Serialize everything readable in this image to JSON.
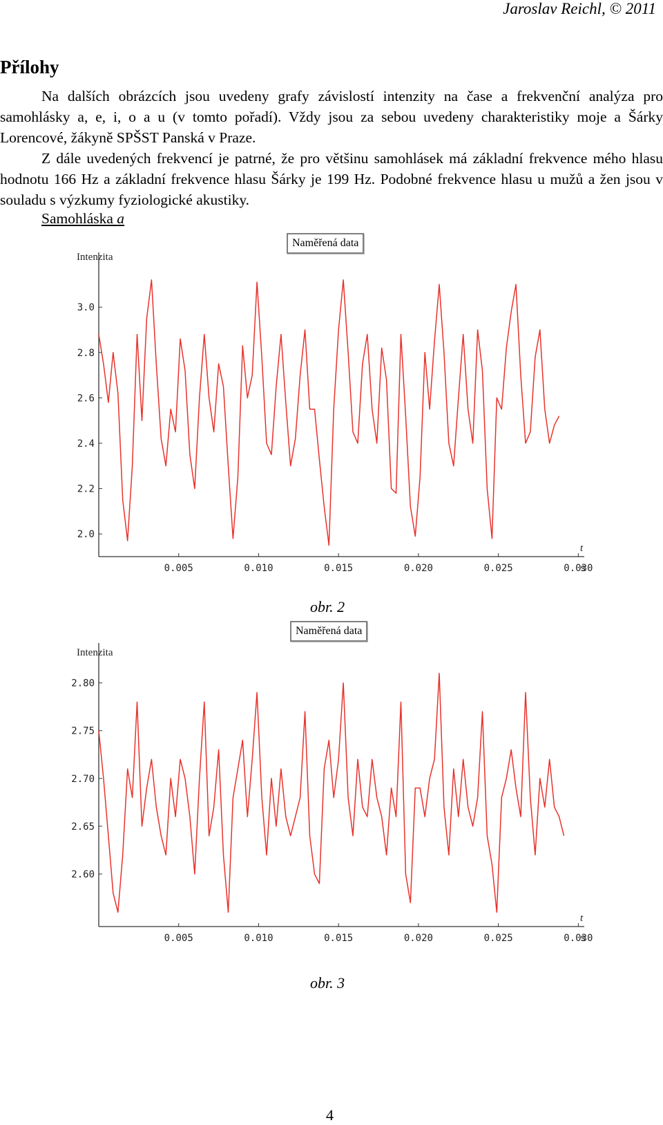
{
  "header": {
    "text": "Jaroslav Reichl, © 2011"
  },
  "heading": "Přílohy",
  "paragraphs": [
    "Na dalších obrázcích jsou uvedeny grafy závislostí intenzity na čase a frekvenční analýza pro samohlásky a, e, i, o a u (v tomto pořadí). Vždy jsou za sebou uvedeny charakteristiky moje a Šárky Lorencové, žákyně SPŠST Panská v Praze.",
    "Z dále uvedených frekvencí je patrné, že pro většinu samohlásek má základní frekvence mého hlasu hodnotu 166 Hz a základní frekvence hlasu Šárky je 199 Hz. Podobné frekvence hlasu u mužů a žen jsou v souladu s výzkumy fyziologické akustiky."
  ],
  "subheading": {
    "text": "Samohláska ",
    "vowel": "a"
  },
  "page_number": "4",
  "line_color": "#e8322b",
  "chart_data": [
    {
      "type": "line",
      "legend": "Naměřená data",
      "ylabel": "Intenzita",
      "xlabel": "t",
      "xunit": "s",
      "xlim": [
        0,
        0.0302
      ],
      "ylim": [
        1.9,
        3.15
      ],
      "xticks": [
        0.005,
        0.01,
        0.015,
        0.02,
        0.025,
        0.03
      ],
      "xtick_labels": [
        "0.005",
        "0.010",
        "0.015",
        "0.020",
        "0.025",
        "0.030"
      ],
      "yticks": [
        2.0,
        2.2,
        2.4,
        2.6,
        2.8,
        3.0
      ],
      "ytick_labels": [
        "2.0",
        "2.2",
        "2.4",
        "2.6",
        "2.8",
        "3.0"
      ],
      "caption": "obr. 2",
      "series": [
        {
          "x": [
            0.0,
            0.0003,
            0.0006,
            0.0009,
            0.0012,
            0.0015,
            0.0018,
            0.0021,
            0.0024,
            0.0027,
            0.003,
            0.0033,
            0.0036,
            0.0039,
            0.0042,
            0.0045,
            0.0048,
            0.0051,
            0.0054,
            0.0057,
            0.006,
            0.0063,
            0.0066,
            0.0069,
            0.0072,
            0.0075,
            0.0078,
            0.0081,
            0.0084,
            0.0087,
            0.009,
            0.0093,
            0.0096,
            0.0099,
            0.0102,
            0.0105,
            0.0108,
            0.0111,
            0.0114,
            0.0117,
            0.012,
            0.0123,
            0.0126,
            0.0129,
            0.0132,
            0.0135,
            0.0138,
            0.0141,
            0.0144,
            0.0147,
            0.015,
            0.0153,
            0.0156,
            0.0159,
            0.0162,
            0.0165,
            0.0168,
            0.0171,
            0.0174,
            0.0177,
            0.018,
            0.0183,
            0.0186,
            0.0189,
            0.0192,
            0.0195,
            0.0198,
            0.0201,
            0.0204,
            0.0207,
            0.021,
            0.0213,
            0.0216,
            0.0219,
            0.0222,
            0.0225,
            0.0228,
            0.0231,
            0.0234,
            0.0237,
            0.024,
            0.0243,
            0.0246,
            0.0249,
            0.0252,
            0.0255,
            0.0258,
            0.0261,
            0.0264,
            0.0267,
            0.027,
            0.0273,
            0.0276,
            0.0279,
            0.0282,
            0.0285,
            0.0288
          ],
          "y": [
            2.88,
            2.75,
            2.58,
            2.8,
            2.62,
            2.15,
            1.97,
            2.3,
            2.88,
            2.5,
            2.95,
            3.12,
            2.75,
            2.42,
            2.3,
            2.55,
            2.45,
            2.86,
            2.72,
            2.35,
            2.2,
            2.6,
            2.88,
            2.6,
            2.45,
            2.75,
            2.65,
            2.3,
            1.98,
            2.25,
            2.83,
            2.6,
            2.7,
            3.11,
            2.78,
            2.4,
            2.35,
            2.65,
            2.88,
            2.58,
            2.3,
            2.42,
            2.7,
            2.9,
            2.55,
            2.55,
            2.33,
            2.12,
            1.95,
            2.55,
            2.9,
            3.12,
            2.8,
            2.45,
            2.4,
            2.75,
            2.88,
            2.55,
            2.4,
            2.82,
            2.68,
            2.2,
            2.18,
            2.88,
            2.52,
            2.12,
            1.99,
            2.25,
            2.8,
            2.55,
            2.85,
            3.1,
            2.8,
            2.4,
            2.3,
            2.6,
            2.88,
            2.55,
            2.4,
            2.9,
            2.72,
            2.2,
            1.98,
            2.6,
            2.55,
            2.82,
            2.98,
            3.1,
            2.7,
            2.4,
            2.45,
            2.78,
            2.9,
            2.55,
            2.4,
            2.48,
            2.52
          ]
        }
      ]
    },
    {
      "type": "line",
      "legend": "Naměřená data",
      "ylabel": "Intenzita",
      "xlabel": "t",
      "xunit": "s",
      "xlim": [
        0,
        0.0302
      ],
      "ylim": [
        2.545,
        2.82
      ],
      "xticks": [
        0.005,
        0.01,
        0.015,
        0.02,
        0.025,
        0.03
      ],
      "xtick_labels": [
        "0.005",
        "0.010",
        "0.015",
        "0.020",
        "0.025",
        "0.030"
      ],
      "yticks": [
        2.6,
        2.65,
        2.7,
        2.75,
        2.8
      ],
      "ytick_labels": [
        "2.60",
        "2.65",
        "2.70",
        "2.75",
        "2.80"
      ],
      "caption": "obr. 3",
      "series": [
        {
          "x": [
            0.0,
            0.0003,
            0.0006,
            0.0009,
            0.0012,
            0.0015,
            0.0018,
            0.0021,
            0.0024,
            0.0027,
            0.003,
            0.0033,
            0.0036,
            0.0039,
            0.0042,
            0.0045,
            0.0048,
            0.0051,
            0.0054,
            0.0057,
            0.006,
            0.0063,
            0.0066,
            0.0069,
            0.0072,
            0.0075,
            0.0078,
            0.0081,
            0.0084,
            0.0087,
            0.009,
            0.0093,
            0.0096,
            0.0099,
            0.0102,
            0.0105,
            0.0108,
            0.0111,
            0.0114,
            0.0117,
            0.012,
            0.0123,
            0.0126,
            0.0129,
            0.0132,
            0.0135,
            0.0138,
            0.0141,
            0.0144,
            0.0147,
            0.015,
            0.0153,
            0.0156,
            0.0159,
            0.0162,
            0.0165,
            0.0168,
            0.0171,
            0.0174,
            0.0177,
            0.018,
            0.0183,
            0.0186,
            0.0189,
            0.0192,
            0.0195,
            0.0198,
            0.0201,
            0.0204,
            0.0207,
            0.021,
            0.0213,
            0.0216,
            0.0219,
            0.0222,
            0.0225,
            0.0228,
            0.0231,
            0.0234,
            0.0237,
            0.024,
            0.0243,
            0.0246,
            0.0249,
            0.0252,
            0.0255,
            0.0258,
            0.0261,
            0.0264,
            0.0267,
            0.027,
            0.0273,
            0.0276,
            0.0279,
            0.0282,
            0.0285,
            0.0288,
            0.0291
          ],
          "y": [
            2.75,
            2.7,
            2.64,
            2.58,
            2.56,
            2.62,
            2.71,
            2.68,
            2.78,
            2.65,
            2.69,
            2.72,
            2.67,
            2.64,
            2.62,
            2.7,
            2.66,
            2.72,
            2.7,
            2.66,
            2.6,
            2.7,
            2.78,
            2.64,
            2.67,
            2.73,
            2.62,
            2.56,
            2.68,
            2.71,
            2.74,
            2.66,
            2.72,
            2.79,
            2.68,
            2.62,
            2.7,
            2.65,
            2.71,
            2.66,
            2.64,
            2.66,
            2.68,
            2.77,
            2.64,
            2.6,
            2.59,
            2.71,
            2.74,
            2.68,
            2.72,
            2.8,
            2.68,
            2.64,
            2.72,
            2.67,
            2.66,
            2.72,
            2.68,
            2.66,
            2.62,
            2.69,
            2.66,
            2.78,
            2.6,
            2.57,
            2.69,
            2.69,
            2.66,
            2.7,
            2.72,
            2.81,
            2.67,
            2.62,
            2.71,
            2.66,
            2.72,
            2.67,
            2.65,
            2.68,
            2.77,
            2.64,
            2.61,
            2.56,
            2.68,
            2.7,
            2.73,
            2.69,
            2.66,
            2.79,
            2.68,
            2.62,
            2.7,
            2.67,
            2.72,
            2.67,
            2.66,
            2.64
          ]
        }
      ]
    }
  ]
}
